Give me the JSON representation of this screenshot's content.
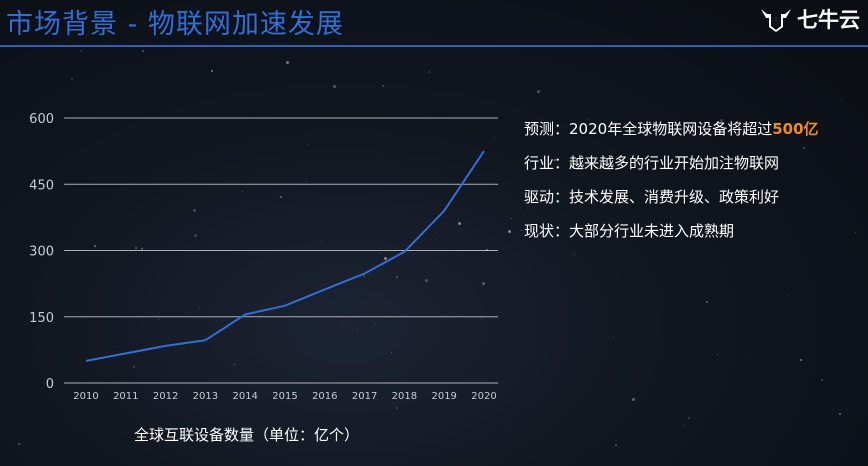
{
  "header": {
    "title": "市场背景 - 物联网加速发展",
    "logo_text": "七牛云"
  },
  "chart_data": {
    "type": "line",
    "x": [
      "2010",
      "2011",
      "2012",
      "2013",
      "2014",
      "2015",
      "2016",
      "2017",
      "2018",
      "2019",
      "2020"
    ],
    "series": [
      {
        "values": [
          50,
          67,
          84,
          97,
          155,
          175,
          212,
          248,
          297,
          390,
          525
        ]
      }
    ],
    "yticks": [
      0,
      150,
      300,
      450,
      600
    ],
    "ylim": [
      0,
      600
    ],
    "grid": true,
    "caption": "全球互联设备数量（单位：亿个）",
    "colors": {
      "line": "#2f6fd6",
      "grid": "#cfd3da",
      "axis_text": "#c8ccd3"
    }
  },
  "facts": [
    {
      "label": "预测：",
      "text": "2020年全球物联网设备将超过",
      "highlight": "500亿"
    },
    {
      "label": "行业：",
      "text": "越来越多的行业开始加注物联网",
      "highlight": ""
    },
    {
      "label": "驱动：",
      "text": "技术发展、消费升级、政策利好",
      "highlight": ""
    },
    {
      "label": "现状：",
      "text": "大部分行业未进入成熟期",
      "highlight": ""
    }
  ],
  "colors": {
    "title": "#2f6fd6",
    "highlight": "#f08a24"
  }
}
